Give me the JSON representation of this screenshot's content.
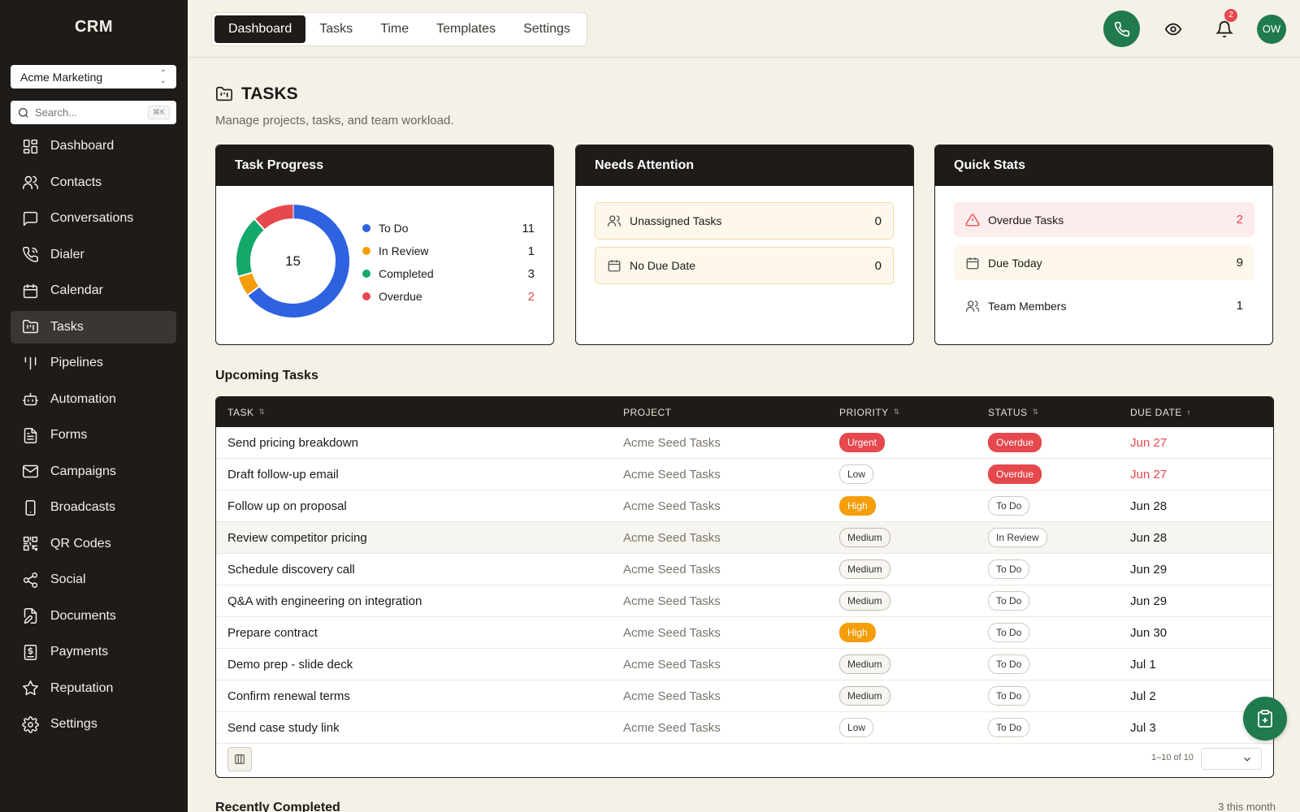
{
  "app": {
    "brand": "CRM"
  },
  "sidebar": {
    "org": "Acme Marketing",
    "search_placeholder": "Search...",
    "search_shortcut": "⌘K",
    "items": [
      {
        "label": "Dashboard",
        "icon": "grid-icon"
      },
      {
        "label": "Contacts",
        "icon": "users-icon"
      },
      {
        "label": "Conversations",
        "icon": "chat-icon"
      },
      {
        "label": "Dialer",
        "icon": "phone-icon"
      },
      {
        "label": "Calendar",
        "icon": "calendar-icon"
      },
      {
        "label": "Tasks",
        "icon": "folder-kanban-icon",
        "active": true
      },
      {
        "label": "Pipelines",
        "icon": "pipeline-icon"
      },
      {
        "label": "Automation",
        "icon": "bot-icon"
      },
      {
        "label": "Forms",
        "icon": "file-text-icon"
      },
      {
        "label": "Campaigns",
        "icon": "mail-icon"
      },
      {
        "label": "Broadcasts",
        "icon": "smartphone-icon"
      },
      {
        "label": "QR Codes",
        "icon": "qr-code-icon"
      },
      {
        "label": "Social",
        "icon": "share-icon"
      },
      {
        "label": "Documents",
        "icon": "file-edit-icon"
      },
      {
        "label": "Payments",
        "icon": "receipt-icon"
      },
      {
        "label": "Reputation",
        "icon": "star-icon"
      },
      {
        "label": "Settings",
        "icon": "gear-icon"
      }
    ]
  },
  "topbar": {
    "tabs": [
      "Dashboard",
      "Tasks",
      "Time",
      "Templates",
      "Settings"
    ],
    "active_tab": "Dashboard",
    "notification_count": "2",
    "avatar_initials": "OW"
  },
  "page": {
    "title": "TASKS",
    "subtitle": "Manage projects, tasks, and team workload."
  },
  "task_progress": {
    "title": "Task Progress",
    "total": "15",
    "segments": [
      {
        "label": "To Do",
        "value": 11,
        "color": "#2f62e0"
      },
      {
        "label": "In Review",
        "value": 1,
        "color": "#f59e0b"
      },
      {
        "label": "Completed",
        "value": 3,
        "color": "#14a86b"
      },
      {
        "label": "Overdue",
        "value": 2,
        "color": "#e5484d"
      }
    ],
    "values_text": [
      "11",
      "1",
      "3",
      "2"
    ]
  },
  "needs_attention": {
    "title": "Needs Attention",
    "rows": [
      {
        "label": "Unassigned Tasks",
        "value": "0"
      },
      {
        "label": "No Due Date",
        "value": "0"
      }
    ]
  },
  "quick_stats": {
    "title": "Quick Stats",
    "rows": [
      {
        "label": "Overdue Tasks",
        "value": "2"
      },
      {
        "label": "Due Today",
        "value": "9"
      },
      {
        "label": "Team Members",
        "value": "1"
      }
    ]
  },
  "upcoming": {
    "title": "Upcoming Tasks",
    "columns": [
      "TASK",
      "PROJECT",
      "PRIORITY",
      "STATUS",
      "DUE DATE"
    ],
    "rows": [
      {
        "task": "Send pricing breakdown",
        "project": "Acme Seed Tasks",
        "priority": "Urgent",
        "status": "Overdue",
        "due": "Jun 27"
      },
      {
        "task": "Draft follow-up email",
        "project": "Acme Seed Tasks",
        "priority": "Low",
        "status": "Overdue",
        "due": "Jun 27"
      },
      {
        "task": "Follow up on proposal",
        "project": "Acme Seed Tasks",
        "priority": "High",
        "status": "To Do",
        "due": "Jun 28"
      },
      {
        "task": "Review competitor pricing",
        "project": "Acme Seed Tasks",
        "priority": "Medium",
        "status": "In Review",
        "due": "Jun 28"
      },
      {
        "task": "Schedule discovery call",
        "project": "Acme Seed Tasks",
        "priority": "Medium",
        "status": "To Do",
        "due": "Jun 29"
      },
      {
        "task": "Q&A with engineering on integration",
        "project": "Acme Seed Tasks",
        "priority": "Medium",
        "status": "To Do",
        "due": "Jun 29"
      },
      {
        "task": "Prepare contract",
        "project": "Acme Seed Tasks",
        "priority": "High",
        "status": "To Do",
        "due": "Jun 30"
      },
      {
        "task": "Demo prep - slide deck",
        "project": "Acme Seed Tasks",
        "priority": "Medium",
        "status": "To Do",
        "due": "Jul 1"
      },
      {
        "task": "Confirm renewal terms",
        "project": "Acme Seed Tasks",
        "priority": "Medium",
        "status": "To Do",
        "due": "Jul 2"
      },
      {
        "task": "Send case study link",
        "project": "Acme Seed Tasks",
        "priority": "Low",
        "status": "To Do",
        "due": "Jul 3"
      }
    ],
    "pagination": "1–10 of 10"
  },
  "recently_completed": {
    "title": "Recently Completed",
    "meta": "3 this month"
  }
}
